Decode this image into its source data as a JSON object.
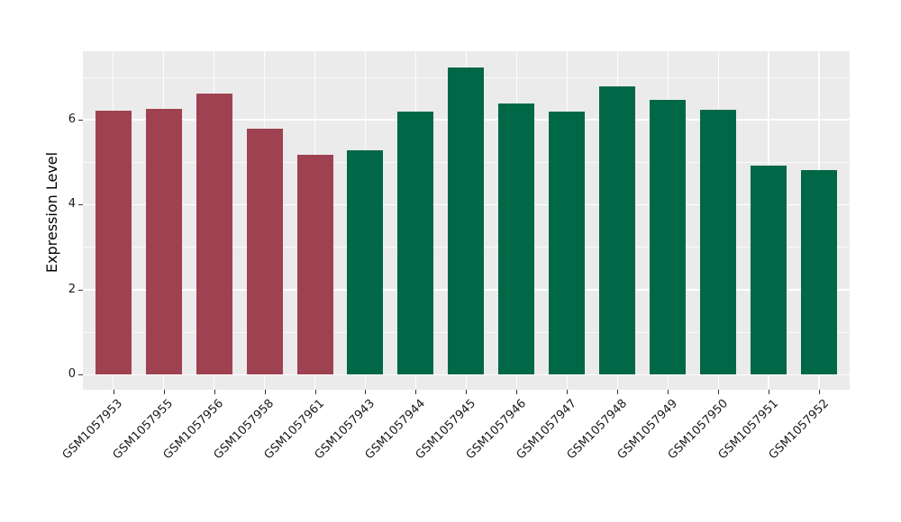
{
  "page": {
    "background": "#ffffff"
  },
  "chart_data": {
    "type": "bar",
    "title": "",
    "xlabel": "",
    "ylabel": "Expression Level",
    "categories": [
      "GSM1057953",
      "GSM1057955",
      "GSM1057956",
      "GSM1057958",
      "GSM1057961",
      "GSM1057943",
      "GSM1057944",
      "GSM1057945",
      "GSM1057946",
      "GSM1057947",
      "GSM1057948",
      "GSM1057949",
      "GSM1057950",
      "GSM1057951",
      "GSM1057952"
    ],
    "values": [
      6.2,
      6.26,
      6.62,
      5.79,
      5.18,
      5.28,
      6.19,
      7.23,
      6.37,
      6.19,
      6.79,
      6.46,
      6.22,
      4.92,
      4.81
    ],
    "bar_colors": [
      "#9E4151",
      "#9E4151",
      "#9E4151",
      "#9E4151",
      "#9E4151",
      "#006747",
      "#006747",
      "#006747",
      "#006747",
      "#006747",
      "#006747",
      "#006747",
      "#006747",
      "#006747",
      "#006747"
    ],
    "group_colors": {
      "left_group_maroon": "#9E4151",
      "right_group_green": "#006747"
    },
    "groups": [
      {
        "name": "maroon-group",
        "categories": [
          "GSM1057953",
          "GSM1057955",
          "GSM1057956",
          "GSM1057958",
          "GSM1057961"
        ]
      },
      {
        "name": "green-group",
        "categories": [
          "GSM1057943",
          "GSM1057944",
          "GSM1057945",
          "GSM1057946",
          "GSM1057947",
          "GSM1057948",
          "GSM1057949",
          "GSM1057950",
          "GSM1057951",
          "GSM1057952"
        ]
      }
    ],
    "yticks": [
      0,
      2,
      4,
      6
    ],
    "yticks_minor": [
      1,
      3,
      5,
      7
    ],
    "ylim": [
      -0.37,
      7.6
    ],
    "grid": "on",
    "legend": "none",
    "plot_background": "#EBEBEB",
    "gridline_color": "#FFFFFF",
    "x_tick_rotation_deg": 45
  }
}
